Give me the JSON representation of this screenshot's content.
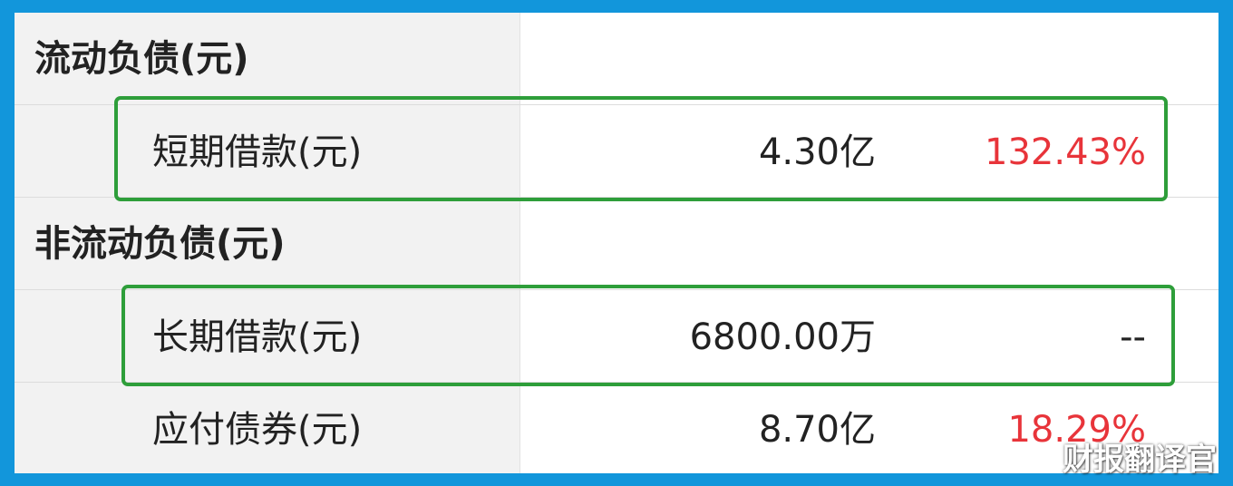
{
  "table": {
    "rows": [
      {
        "type": "section",
        "label": "流动负债(元)",
        "value": "",
        "change": ""
      },
      {
        "type": "item",
        "label": "短期借款(元)",
        "value": "4.30亿",
        "change": "132.43%",
        "highlighted": true
      },
      {
        "type": "section",
        "label": "非流动负债(元)",
        "value": "",
        "change": ""
      },
      {
        "type": "item",
        "label": "长期借款(元)",
        "value": "6800.00万",
        "change": "--",
        "highlighted": true
      },
      {
        "type": "item",
        "label": "应付债券(元)",
        "value": "8.70亿",
        "change": "18.29%",
        "highlighted": false
      }
    ]
  },
  "colors": {
    "frame_border": "#1296db",
    "highlight_box": "#2e9e3a",
    "positive_change": "#e8343a",
    "label_cell_bg": "#f2f2f2"
  },
  "watermark": "财报翻译官"
}
